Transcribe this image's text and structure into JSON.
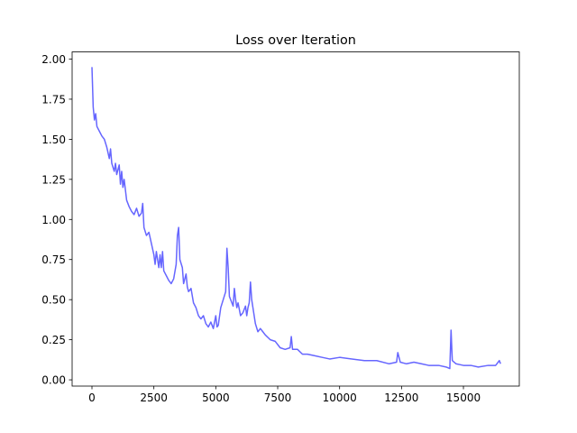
{
  "chart_data": {
    "type": "line",
    "title": "Loss over Iteration",
    "x": [
      0,
      50,
      100,
      150,
      200,
      300,
      400,
      500,
      600,
      700,
      750,
      800,
      900,
      950,
      1000,
      1100,
      1150,
      1200,
      1250,
      1300,
      1400,
      1500,
      1600,
      1700,
      1800,
      1900,
      2000,
      2050,
      2100,
      2200,
      2300,
      2400,
      2500,
      2550,
      2600,
      2700,
      2750,
      2800,
      2850,
      2900,
      3000,
      3100,
      3200,
      3300,
      3400,
      3450,
      3500,
      3550,
      3650,
      3700,
      3800,
      3850,
      3900,
      4000,
      4100,
      4200,
      4300,
      4400,
      4500,
      4600,
      4700,
      4800,
      4900,
      5000,
      5050,
      5100,
      5200,
      5300,
      5400,
      5450,
      5500,
      5550,
      5650,
      5700,
      5750,
      5800,
      5850,
      5900,
      6000,
      6100,
      6200,
      6250,
      6300,
      6350,
      6400,
      6450,
      6500,
      6600,
      6700,
      6800,
      6900,
      7000,
      7200,
      7400,
      7600,
      7800,
      8000,
      8050,
      8100,
      8300,
      8500,
      8700,
      9000,
      9300,
      9600,
      10000,
      10500,
      11000,
      11500,
      12000,
      12300,
      12350,
      12450,
      12700,
      13000,
      13300,
      13600,
      14000,
      14300,
      14450,
      14500,
      14550,
      14700,
      15000,
      15300,
      15600,
      16000,
      16300,
      16450,
      16500
    ],
    "series": [
      {
        "color": "#6666ff",
        "values": [
          1.95,
          1.7,
          1.62,
          1.66,
          1.58,
          1.55,
          1.52,
          1.5,
          1.45,
          1.38,
          1.44,
          1.35,
          1.3,
          1.35,
          1.28,
          1.34,
          1.22,
          1.3,
          1.2,
          1.25,
          1.12,
          1.08,
          1.05,
          1.03,
          1.07,
          1.02,
          1.04,
          1.1,
          0.95,
          0.9,
          0.92,
          0.85,
          0.78,
          0.72,
          0.8,
          0.7,
          0.78,
          0.7,
          0.8,
          0.68,
          0.65,
          0.62,
          0.6,
          0.63,
          0.72,
          0.9,
          0.95,
          0.75,
          0.7,
          0.6,
          0.66,
          0.58,
          0.55,
          0.57,
          0.48,
          0.45,
          0.4,
          0.38,
          0.4,
          0.35,
          0.33,
          0.36,
          0.32,
          0.4,
          0.33,
          0.34,
          0.45,
          0.5,
          0.55,
          0.82,
          0.7,
          0.52,
          0.48,
          0.46,
          0.57,
          0.5,
          0.45,
          0.48,
          0.4,
          0.42,
          0.46,
          0.4,
          0.45,
          0.48,
          0.61,
          0.5,
          0.45,
          0.35,
          0.3,
          0.32,
          0.3,
          0.28,
          0.25,
          0.24,
          0.2,
          0.19,
          0.2,
          0.27,
          0.19,
          0.19,
          0.16,
          0.16,
          0.15,
          0.14,
          0.13,
          0.14,
          0.13,
          0.12,
          0.12,
          0.1,
          0.11,
          0.17,
          0.11,
          0.1,
          0.11,
          0.1,
          0.09,
          0.09,
          0.08,
          0.07,
          0.31,
          0.12,
          0.1,
          0.09,
          0.09,
          0.08,
          0.09,
          0.09,
          0.12,
          0.1
        ]
      }
    ],
    "xlim": [
      -801,
      17256
    ],
    "xticks": [
      0,
      2500,
      5000,
      7500,
      10000,
      12500,
      15000
    ],
    "ylim": [
      -0.039,
      2.045
    ],
    "yticks": [
      {
        "value": 0,
        "label": "0.00"
      },
      {
        "value": 0.25,
        "label": "0.25"
      },
      {
        "value": 0.5,
        "label": "0.50"
      },
      {
        "value": 0.75,
        "label": "0.75"
      },
      {
        "value": 1,
        "label": "1.00"
      },
      {
        "value": 1.25,
        "label": "1.25"
      },
      {
        "value": 1.5,
        "label": "1.50"
      },
      {
        "value": 1.75,
        "label": "1.75"
      },
      {
        "value": 2,
        "label": "2.00"
      }
    ],
    "grid": false
  }
}
